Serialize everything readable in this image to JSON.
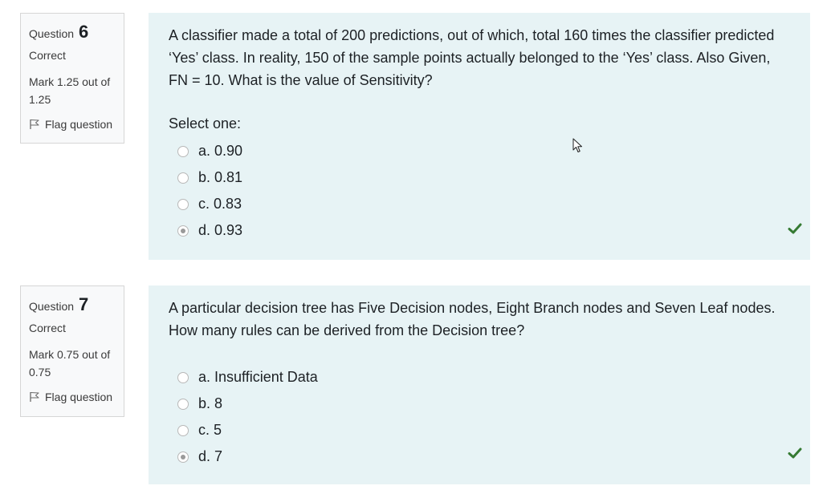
{
  "questions": [
    {
      "label": "Question",
      "number": "6",
      "state": "Correct",
      "grade": "Mark 1.25 out of 1.25",
      "flag_label": "Flag question",
      "text": "A classifier made a total of 200 predictions, out of which, total 160 times the classifier predicted ‘Yes’ class. In reality, 150 of the sample points actually belonged to the ‘Yes’ class. Also Given, FN = 10. What is the value of Sensitivity?",
      "prompt": "Select one:",
      "answers": [
        {
          "label": "a. 0.90",
          "selected": false
        },
        {
          "label": "b. 0.81",
          "selected": false
        },
        {
          "label": "c. 0.83",
          "selected": false
        },
        {
          "label": "d. 0.93",
          "selected": true
        }
      ],
      "result_icon": "check-icon",
      "result_color": "#357a32"
    },
    {
      "label": "Question",
      "number": "7",
      "state": "Correct",
      "grade": "Mark 0.75 out of 0.75",
      "flag_label": "Flag question",
      "text": "A particular decision tree has Five Decision nodes, Eight Branch nodes and Seven Leaf nodes. How many rules can be derived from the Decision tree?",
      "answers": [
        {
          "label": "a. Insufficient Data",
          "selected": false
        },
        {
          "label": "b. 8",
          "selected": false
        },
        {
          "label": "c. 5",
          "selected": false
        },
        {
          "label": "d. 7",
          "selected": true
        }
      ],
      "result_icon": "check-icon",
      "result_color": "#357a32"
    }
  ],
  "colors": {
    "content_bg": "#e7f3f5",
    "info_bg": "#f8f9fa",
    "correct": "#357a32"
  }
}
